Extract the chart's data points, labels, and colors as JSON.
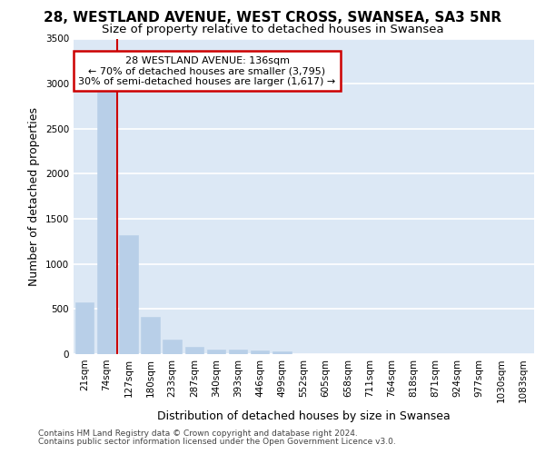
{
  "title_line1": "28, WESTLAND AVENUE, WEST CROSS, SWANSEA, SA3 5NR",
  "title_line2": "Size of property relative to detached houses in Swansea",
  "xlabel": "Distribution of detached houses by size in Swansea",
  "ylabel": "Number of detached properties",
  "categories": [
    "21sqm",
    "74sqm",
    "127sqm",
    "180sqm",
    "233sqm",
    "287sqm",
    "340sqm",
    "393sqm",
    "446sqm",
    "499sqm",
    "552sqm",
    "605sqm",
    "658sqm",
    "711sqm",
    "764sqm",
    "818sqm",
    "871sqm",
    "924sqm",
    "977sqm",
    "1030sqm",
    "1083sqm"
  ],
  "values": [
    575,
    2910,
    1320,
    415,
    160,
    80,
    55,
    50,
    45,
    35,
    0,
    0,
    0,
    0,
    0,
    0,
    0,
    0,
    0,
    0,
    0
  ],
  "bar_color": "#b8cfe8",
  "bar_edgecolor": "#b8cfe8",
  "property_line_index": 2,
  "annotation_text_line1": "28 WESTLAND AVENUE: 136sqm",
  "annotation_text_line2": "← 70% of detached houses are smaller (3,795)",
  "annotation_text_line3": "30% of semi-detached houses are larger (1,617) →",
  "annotation_box_facecolor": "#ffffff",
  "annotation_border_color": "#cc0000",
  "vline_color": "#cc0000",
  "ylim": [
    0,
    3500
  ],
  "yticks": [
    0,
    500,
    1000,
    1500,
    2000,
    2500,
    3000,
    3500
  ],
  "footer_line1": "Contains HM Land Registry data © Crown copyright and database right 2024.",
  "footer_line2": "Contains public sector information licensed under the Open Government Licence v3.0.",
  "fig_background": "#ffffff",
  "plot_background": "#dce8f5",
  "grid_color": "#ffffff",
  "title_fontsize": 11,
  "subtitle_fontsize": 9.5,
  "tick_fontsize": 7.5,
  "ylabel_fontsize": 9,
  "xlabel_fontsize": 9,
  "footer_fontsize": 6.5
}
